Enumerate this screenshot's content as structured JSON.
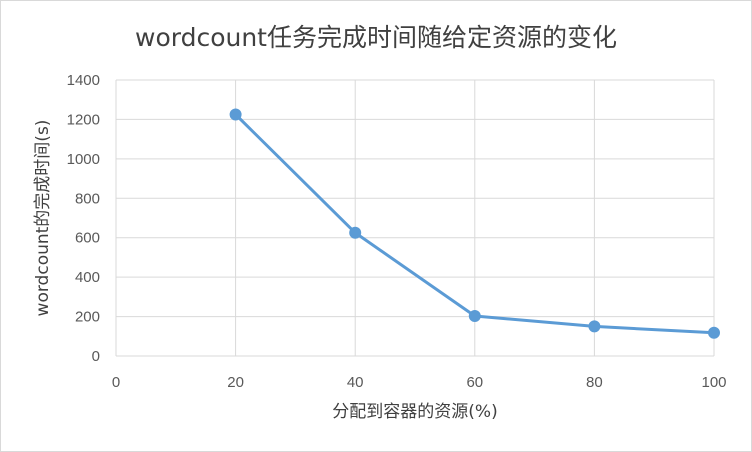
{
  "chart_data": {
    "type": "line",
    "title": "wordcount任务完成时间随给定资源的变化",
    "xlabel": "分配到容器的资源(%)",
    "ylabel": "wordcount的完成时间(s)",
    "xlim": [
      0,
      100
    ],
    "ylim": [
      0,
      1400
    ],
    "x_ticks": [
      0,
      20,
      40,
      60,
      80,
      100
    ],
    "y_ticks": [
      0,
      200,
      400,
      600,
      800,
      1000,
      1200,
      1400
    ],
    "x_tick_labels": [
      "0",
      "20",
      "40",
      "60",
      "80",
      "100"
    ],
    "y_tick_labels": [
      "0",
      "200",
      "400",
      "600",
      "800",
      "1000",
      "1200",
      "1400"
    ],
    "grid": true,
    "legend": "none",
    "series": [
      {
        "color": "#5b9bd5",
        "x": [
          20,
          40,
          60,
          80,
          100
        ],
        "y": [
          1225,
          625,
          203,
          150,
          118
        ]
      }
    ]
  }
}
